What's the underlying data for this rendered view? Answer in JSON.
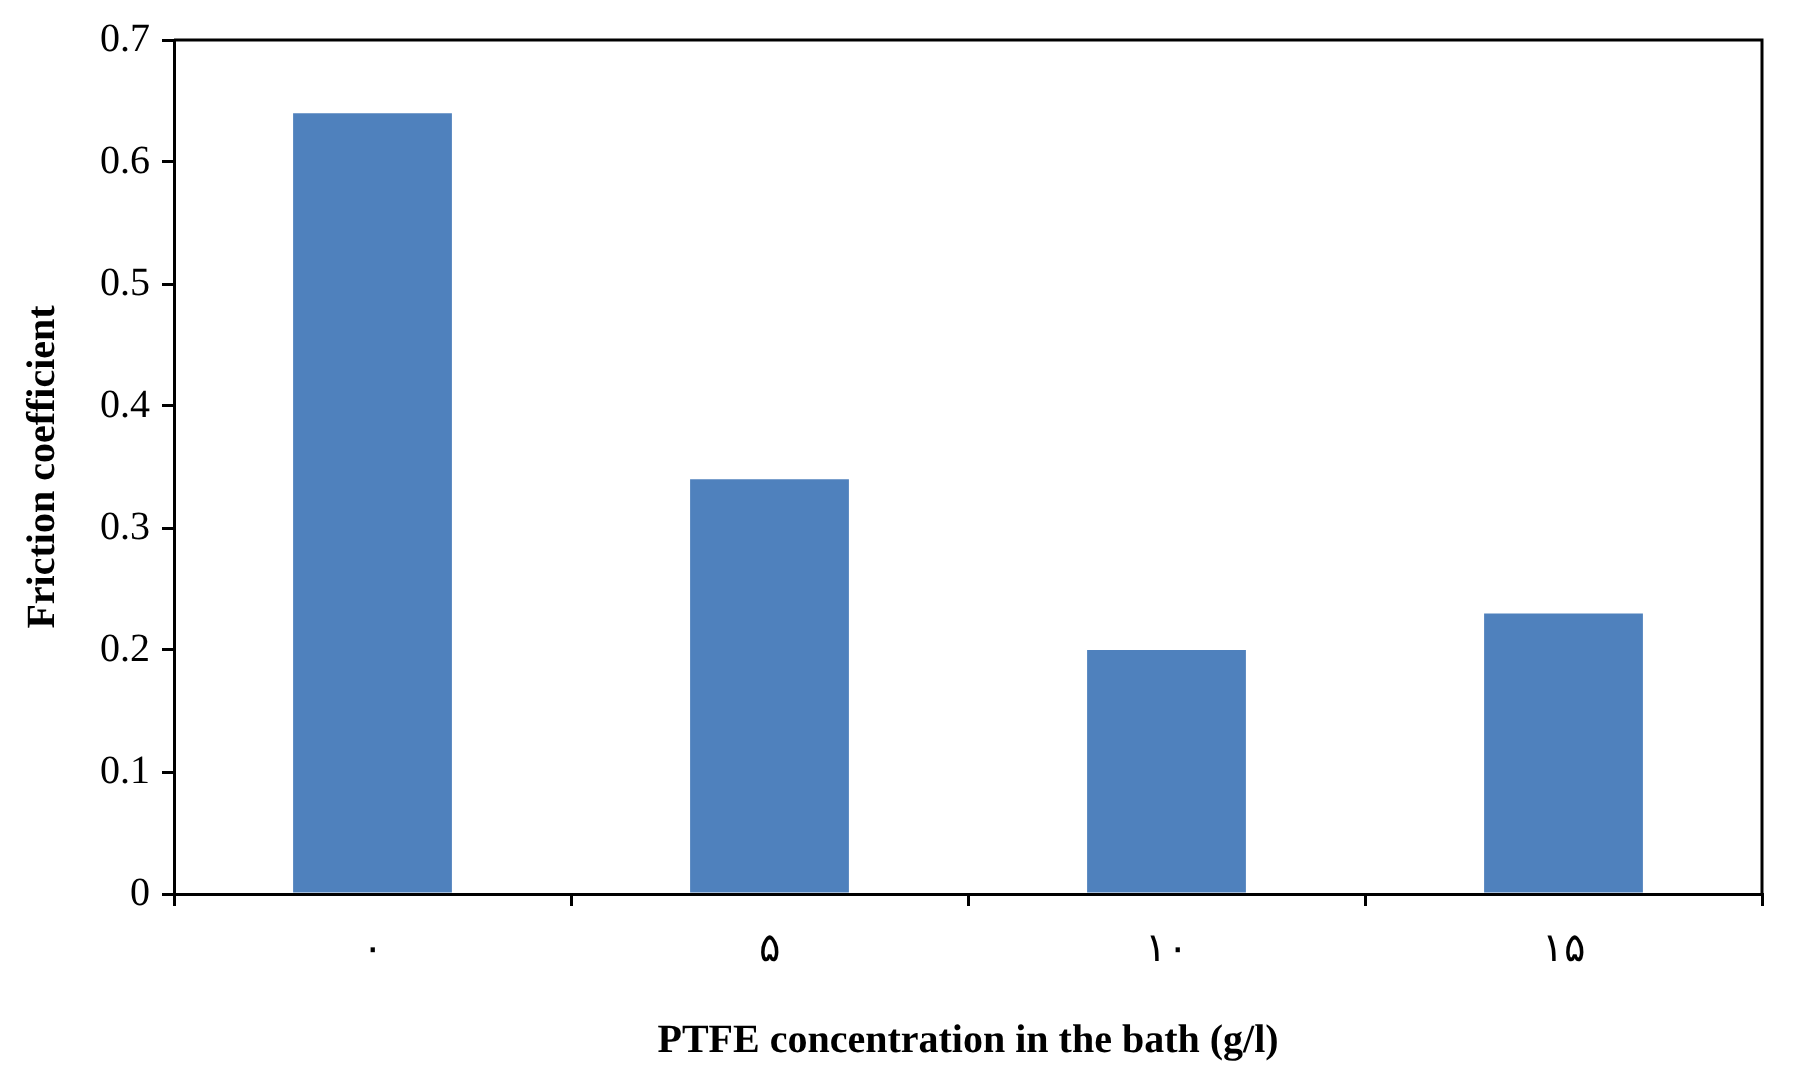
{
  "chart_data": {
    "type": "bar",
    "xlabel": "PTFE concentration in the bath (g/l)",
    "ylabel": "Friction coefficient",
    "categories": [
      "۰",
      "۵",
      "۱۰",
      "۱۵"
    ],
    "values": [
      0.64,
      0.34,
      0.2,
      0.23
    ],
    "color": "#4f81bd",
    "ylim": [
      0,
      0.7
    ],
    "yticks": [
      0,
      0.1,
      0.2,
      0.3,
      0.4,
      0.5,
      0.6,
      0.7
    ],
    "grid": false,
    "legend": false
  }
}
